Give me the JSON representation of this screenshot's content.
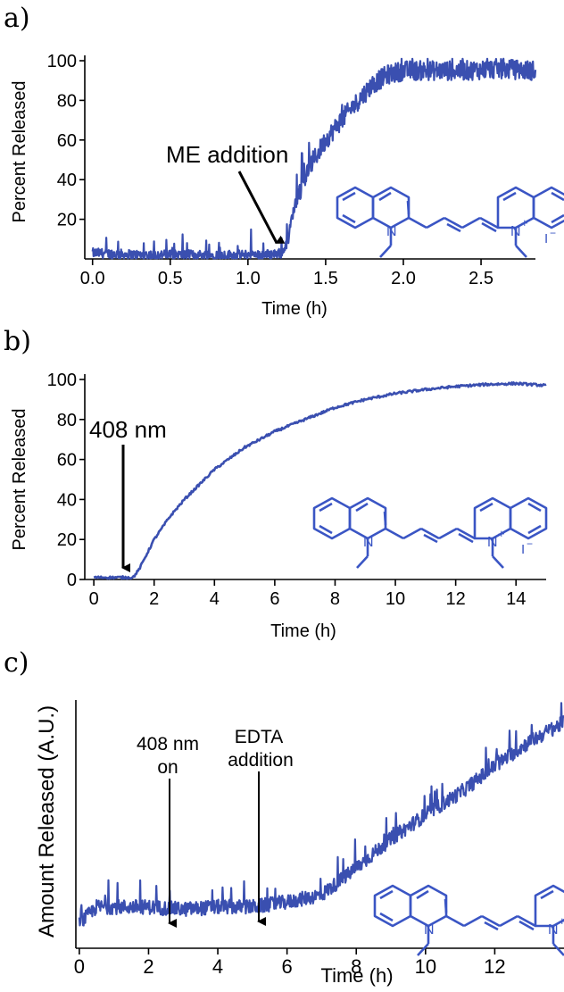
{
  "panels": [
    "a)",
    "b)",
    "c)"
  ],
  "colors": {
    "trace": "#3a4fb0",
    "molecule": "#3a55c4",
    "axis": "#000000"
  },
  "molecule": {
    "n_left": "N",
    "n_right": "N",
    "charge": "+",
    "counter_ion": "I",
    "counter_charge": "−"
  },
  "chart_data": [
    {
      "type": "line",
      "panel": "a)",
      "xlabel": "Time (h)",
      "ylabel": "Percent Released",
      "xlim": [
        -0.05,
        2.85
      ],
      "ylim": [
        0,
        100
      ],
      "xticks": [
        "0.0",
        "0.5",
        "1.0",
        "1.5",
        "2.0",
        "2.5"
      ],
      "yticks": [
        "20",
        "40",
        "60",
        "80",
        "100"
      ],
      "annotations": [
        {
          "text": "ME addition",
          "x": 1.25,
          "y": 3
        }
      ],
      "series": [
        {
          "x": [
            0,
            0.3,
            0.6,
            0.9,
            1.1,
            1.22,
            1.26,
            1.28,
            1.32,
            1.4,
            1.5,
            1.6,
            1.7,
            1.8,
            1.9,
            2.0,
            2.2,
            2.4,
            2.6,
            2.85
          ],
          "y": [
            3,
            2,
            2,
            2,
            2,
            3,
            10,
            20,
            32,
            47,
            60,
            70,
            79,
            88,
            93,
            95,
            95,
            95,
            96,
            95
          ]
        }
      ]
    },
    {
      "type": "line",
      "panel": "b)",
      "xlabel": "Time  (h)",
      "ylabel": "Percent Released",
      "xlim": [
        -0.3,
        15
      ],
      "ylim": [
        0,
        100
      ],
      "xticks": [
        "0",
        "2",
        "4",
        "6",
        "8",
        "10",
        "12",
        "14"
      ],
      "yticks": [
        "0",
        "20",
        "40",
        "60",
        "80",
        "100"
      ],
      "annotations": [
        {
          "text": "408 nm",
          "x": 1.25,
          "y": 2
        }
      ],
      "series": [
        {
          "x": [
            0,
            0.5,
            1.0,
            1.3,
            1.5,
            2.0,
            2.5,
            3.0,
            4.0,
            5.0,
            6.0,
            7.0,
            8.0,
            9.0,
            10.0,
            11.0,
            12.0,
            13.0,
            14.0,
            15.0
          ],
          "y": [
            1,
            1,
            1,
            1,
            5,
            20,
            31,
            40,
            55,
            66,
            74,
            80,
            86,
            90,
            93,
            95,
            96.5,
            97.5,
            98,
            97
          ]
        }
      ]
    },
    {
      "type": "line",
      "panel": "c)",
      "xlabel": "Time (h)",
      "ylabel": "Amount Released (A.U.)",
      "xlim": [
        -0.1,
        14
      ],
      "ylim": [
        0,
        100
      ],
      "xticks": [
        "0",
        "2",
        "4",
        "6",
        "8",
        "10",
        "12"
      ],
      "yticks": [],
      "annotations": [
        {
          "text": "408 nm",
          "text2": "on",
          "x": 2.6,
          "y": 16
        },
        {
          "text": "EDTA",
          "text2": "addition",
          "x": 5.0,
          "y": 16
        }
      ],
      "series": [
        {
          "x": [
            0,
            0.5,
            1.0,
            2.0,
            3.0,
            4.0,
            5.0,
            6.0,
            7.0,
            8.0,
            9.0,
            10.0,
            11.0,
            12.0,
            13.0,
            14.0
          ],
          "y": [
            10,
            17,
            17,
            17,
            16,
            17,
            17,
            19,
            22,
            33,
            45,
            55,
            64,
            75,
            85,
            93
          ]
        }
      ]
    }
  ]
}
